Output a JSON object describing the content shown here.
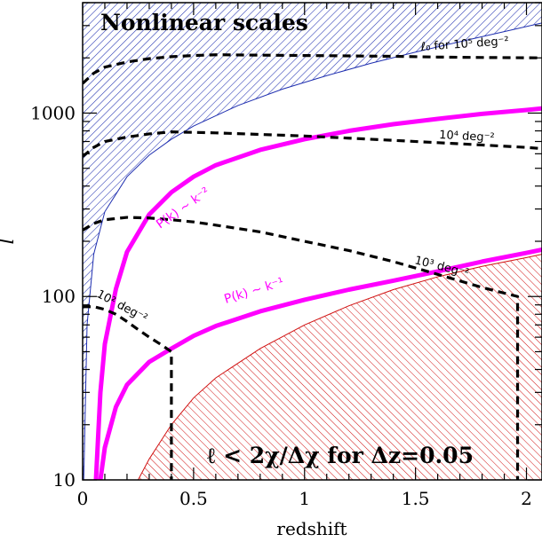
{
  "chart_data": {
    "type": "line",
    "title": "",
    "xlabel": "redshift",
    "ylabel": "l",
    "xlim": [
      0,
      2.07
    ],
    "ylim": [
      10,
      4000
    ],
    "y_scale": "log",
    "x_ticks": [
      {
        "value": 0,
        "label": "0"
      },
      {
        "value": 0.5,
        "label": "0.5"
      },
      {
        "value": 1,
        "label": "1"
      },
      {
        "value": 1.5,
        "label": "1.5"
      },
      {
        "value": 2,
        "label": "2"
      }
    ],
    "y_ticks": [
      {
        "value": 10,
        "label": "10"
      },
      {
        "value": 100,
        "label": "100"
      },
      {
        "value": 1000,
        "label": "1000"
      }
    ],
    "regions": [
      {
        "name": "Nonlinear scales",
        "label": "Nonlinear scales",
        "color": "#1f2fb0",
        "hatch": "backslash",
        "boundary": [
          [
            0.005,
            10
          ],
          [
            0.02,
            70
          ],
          [
            0.05,
            170
          ],
          [
            0.1,
            290
          ],
          [
            0.2,
            450
          ],
          [
            0.3,
            590
          ],
          [
            0.4,
            720
          ],
          [
            0.5,
            850
          ],
          [
            0.7,
            1100
          ],
          [
            0.9,
            1350
          ],
          [
            1.1,
            1600
          ],
          [
            1.3,
            1870
          ],
          [
            1.5,
            2150
          ],
          [
            1.7,
            2450
          ],
          [
            1.9,
            2780
          ],
          [
            2.07,
            3100
          ]
        ]
      },
      {
        "name": "l < 2chi/dchi for dz=0.05",
        "label": "ℓ < 2χ/Δχ for Δz=0.05",
        "color": "#d01010",
        "hatch": "slash",
        "boundary": [
          [
            0.25,
            10
          ],
          [
            0.3,
            13
          ],
          [
            0.4,
            20
          ],
          [
            0.5,
            28
          ],
          [
            0.6,
            36
          ],
          [
            0.8,
            52
          ],
          [
            1.0,
            70
          ],
          [
            1.2,
            89
          ],
          [
            1.4,
            109
          ],
          [
            1.6,
            128
          ],
          [
            1.8,
            146
          ],
          [
            2.0,
            163
          ],
          [
            2.07,
            170
          ]
        ]
      }
    ],
    "series": [
      {
        "name": "P(k) ~ k^-2",
        "label": "P(k) ~ k⁻²",
        "color": "#ff00ff",
        "style": "solid",
        "points": [
          [
            0.06,
            10
          ],
          [
            0.08,
            30
          ],
          [
            0.1,
            55
          ],
          [
            0.15,
            110
          ],
          [
            0.2,
            175
          ],
          [
            0.3,
            280
          ],
          [
            0.4,
            370
          ],
          [
            0.5,
            450
          ],
          [
            0.6,
            520
          ],
          [
            0.8,
            630
          ],
          [
            1.0,
            720
          ],
          [
            1.2,
            800
          ],
          [
            1.4,
            870
          ],
          [
            1.6,
            930
          ],
          [
            1.8,
            990
          ],
          [
            2.0,
            1040
          ],
          [
            2.07,
            1060
          ]
        ]
      },
      {
        "name": "P(k) ~ k^-1",
        "label": "P(k) ~ k⁻¹",
        "color": "#ff00ff",
        "style": "solid",
        "points": [
          [
            0.065,
            5
          ],
          [
            0.08,
            10
          ],
          [
            0.1,
            15
          ],
          [
            0.15,
            25
          ],
          [
            0.2,
            33
          ],
          [
            0.3,
            44
          ],
          [
            0.4,
            52
          ],
          [
            0.5,
            61
          ],
          [
            0.6,
            69
          ],
          [
            0.8,
            83
          ],
          [
            1.0,
            96
          ],
          [
            1.2,
            109
          ],
          [
            1.4,
            122
          ],
          [
            1.6,
            137
          ],
          [
            1.8,
            155
          ],
          [
            2.0,
            173
          ],
          [
            2.07,
            180
          ]
        ]
      },
      {
        "name": "l0 for 10^5 deg^-2",
        "label": "ℓ₀ for 10⁵ deg⁻²",
        "color": "#000000",
        "style": "dashed",
        "points": [
          [
            0,
            1450
          ],
          [
            0.05,
            1650
          ],
          [
            0.1,
            1780
          ],
          [
            0.2,
            1900
          ],
          [
            0.3,
            1980
          ],
          [
            0.4,
            2030
          ],
          [
            0.5,
            2060
          ],
          [
            0.6,
            2080
          ],
          [
            0.8,
            2070
          ],
          [
            1.0,
            2060
          ],
          [
            1.2,
            2050
          ],
          [
            1.4,
            2040
          ],
          [
            1.6,
            2020
          ],
          [
            1.8,
            2010
          ],
          [
            2.07,
            2000
          ]
        ]
      },
      {
        "name": "10^4 deg^-2",
        "label": "10⁴ deg⁻²",
        "color": "#000000",
        "style": "dashed",
        "points": [
          [
            0,
            580
          ],
          [
            0.05,
            650
          ],
          [
            0.1,
            700
          ],
          [
            0.2,
            740
          ],
          [
            0.3,
            770
          ],
          [
            0.4,
            790
          ],
          [
            0.5,
            785
          ],
          [
            0.6,
            780
          ],
          [
            0.8,
            765
          ],
          [
            1.0,
            750
          ],
          [
            1.2,
            730
          ],
          [
            1.4,
            710
          ],
          [
            1.6,
            690
          ],
          [
            1.8,
            670
          ],
          [
            2.0,
            650
          ],
          [
            2.07,
            640
          ]
        ]
      },
      {
        "name": "10^3 deg^-2",
        "label": "10³ deg⁻²",
        "color": "#000000",
        "style": "dashed",
        "points": [
          [
            0,
            230
          ],
          [
            0.05,
            250
          ],
          [
            0.1,
            262
          ],
          [
            0.2,
            270
          ],
          [
            0.3,
            268
          ],
          [
            0.4,
            262
          ],
          [
            0.5,
            255
          ],
          [
            0.6,
            245
          ],
          [
            0.8,
            225
          ],
          [
            1.0,
            200
          ],
          [
            1.2,
            178
          ],
          [
            1.4,
            155
          ],
          [
            1.6,
            132
          ],
          [
            1.8,
            112
          ],
          [
            1.96,
            100
          ],
          [
            1.96,
            10
          ]
        ]
      },
      {
        "name": "10^2 deg^-2",
        "label": "10² deg⁻²",
        "color": "#000000",
        "style": "dashed",
        "points": [
          [
            0,
            88
          ],
          [
            0.05,
            88
          ],
          [
            0.1,
            85
          ],
          [
            0.15,
            80
          ],
          [
            0.2,
            73
          ],
          [
            0.25,
            66
          ],
          [
            0.3,
            60
          ],
          [
            0.35,
            55
          ],
          [
            0.4,
            50
          ],
          [
            0.4,
            10
          ]
        ]
      }
    ]
  }
}
